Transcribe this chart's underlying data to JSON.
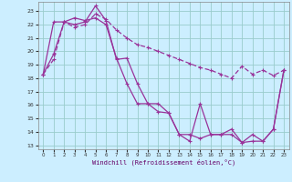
{
  "xlabel": "Windchill (Refroidissement éolien,°C)",
  "bg_color": "#cceeff",
  "grid_color": "#99cccc",
  "line_color": "#993399",
  "xlim": [
    -0.5,
    23.5
  ],
  "ylim": [
    12.7,
    23.7
  ],
  "yticks": [
    13,
    14,
    15,
    16,
    17,
    18,
    19,
    20,
    21,
    22,
    23
  ],
  "xticks": [
    0,
    1,
    2,
    3,
    4,
    5,
    6,
    7,
    8,
    9,
    10,
    11,
    12,
    13,
    14,
    15,
    16,
    17,
    18,
    19,
    20,
    21,
    22,
    23
  ],
  "line1_x": [
    0,
    1,
    2,
    3,
    4,
    5,
    6,
    7,
    8,
    9,
    10,
    11,
    12,
    13,
    14,
    15,
    16,
    17,
    18,
    19,
    20,
    21,
    22,
    23
  ],
  "line1_y": [
    18.3,
    19.8,
    22.2,
    22.0,
    22.2,
    23.4,
    22.3,
    19.4,
    19.5,
    17.6,
    16.1,
    16.1,
    15.4,
    13.8,
    13.3,
    16.1,
    13.8,
    13.8,
    13.8,
    13.2,
    13.8,
    13.3,
    14.2,
    18.6
  ],
  "line2_x": [
    0,
    1,
    2,
    3,
    4,
    5,
    6,
    7,
    8,
    9,
    10,
    11,
    12,
    13,
    14,
    15,
    16,
    17,
    18,
    19,
    20,
    21,
    22,
    23
  ],
  "line2_y": [
    18.3,
    22.2,
    22.2,
    22.5,
    22.3,
    22.5,
    22.0,
    19.5,
    17.6,
    16.1,
    16.1,
    15.5,
    15.4,
    13.8,
    13.8,
    13.5,
    13.8,
    13.8,
    14.2,
    13.2,
    13.3,
    13.3,
    14.2,
    18.6
  ],
  "line3_x": [
    0,
    1,
    2,
    3,
    4,
    5,
    6,
    7,
    8,
    9,
    10,
    11,
    12,
    13,
    14,
    15,
    16,
    17,
    18,
    19,
    20,
    21,
    22,
    23
  ],
  "line3_y": [
    18.3,
    19.4,
    22.2,
    21.8,
    22.0,
    22.8,
    22.4,
    21.6,
    21.0,
    20.5,
    20.3,
    20.0,
    19.7,
    19.4,
    19.1,
    18.8,
    18.6,
    18.3,
    18.0,
    18.9,
    18.3,
    18.6,
    18.2,
    18.6
  ]
}
